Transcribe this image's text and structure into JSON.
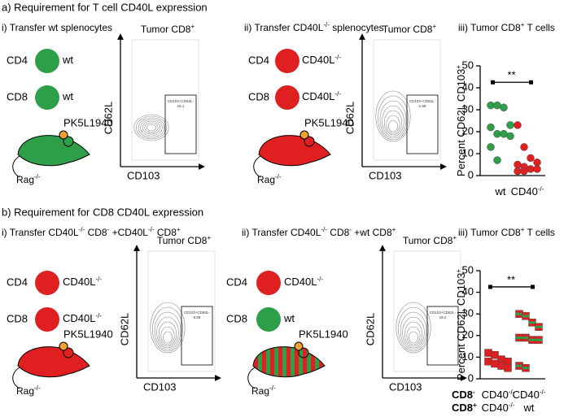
{
  "panel_a": {
    "heading": "a) Requirement for T cell CD40L expression",
    "i": {
      "title": [
        "i) Transfer wt splenocytes"
      ],
      "cd4": "CD4",
      "cd4_genotype": [
        "wt"
      ],
      "cd8": "CD8",
      "cd8_genotype": [
        "wt"
      ],
      "tumor": "PK5L1940",
      "host": [
        "Rag",
        {
          "sup": "-/-"
        }
      ],
      "plot_title": [
        "Tumor CD8",
        {
          "sup": "+"
        }
      ],
      "y_axis": "CD62L",
      "x_axis": "CD103",
      "gate_label": [
        "CD103+CD62L-"
      ],
      "gate_value": 15.1
    },
    "ii": {
      "title": [
        "ii) Transfer CD40L",
        {
          "sup": "-/-"
        },
        " splenocytes"
      ],
      "cd4": "CD4",
      "cd4_genotype": [
        "CD40L",
        {
          "sup": "-/-"
        }
      ],
      "cd8": "CD8",
      "cd8_genotype": [
        "CD40L",
        {
          "sup": "-/-"
        }
      ],
      "tumor": "PK5L1940",
      "host": [
        "Rag",
        {
          "sup": "-/-"
        }
      ],
      "plot_title": [
        "Tumor CD8",
        {
          "sup": "+"
        }
      ],
      "y_axis": "CD62L",
      "x_axis": "CD103",
      "gate_label": [
        "CD103+CD62L-"
      ],
      "gate_value": 1.89
    }
  },
  "panel_b": {
    "heading": "b) Requirement for CD8 CD40L expression",
    "i": {
      "title": [
        "i) Transfer CD40L",
        {
          "sup": "-/-"
        },
        " CD8",
        {
          "sup": "-"
        },
        " +CD40L",
        {
          "sup": "-/-"
        },
        " CD8",
        {
          "sup": "+"
        }
      ],
      "cd4": "CD4",
      "cd4_genotype": [
        "CD40L",
        {
          "sup": "-/-"
        }
      ],
      "cd8": "CD8",
      "cd8_genotype": [
        "CD40L",
        {
          "sup": "-/-"
        }
      ],
      "tumor": "PK5L1940",
      "host": [
        "Rag",
        {
          "sup": "-/-"
        }
      ],
      "plot_title": [
        "Tumor CD8",
        {
          "sup": "+"
        }
      ],
      "y_axis": "CD62L",
      "x_axis": "CD103",
      "gate_label": [
        "CD103+CD62L-"
      ],
      "gate_value": 9.08
    },
    "ii": {
      "title": [
        "ii) Transfer CD40L",
        {
          "sup": "-/-"
        },
        " CD8",
        {
          "sup": "-"
        },
        " +wt CD8",
        {
          "sup": "+"
        }
      ],
      "cd4": "CD4",
      "cd4_genotype": [
        "CD40L",
        {
          "sup": "-/-"
        }
      ],
      "cd8": "CD8",
      "cd8_genotype": [
        "wt"
      ],
      "tumor": "PK5L1940",
      "host": [
        "Rag",
        {
          "sup": "-/-"
        }
      ],
      "plot_title": [
        "Tumor CD8",
        {
          "sup": "+"
        }
      ],
      "y_axis": "CD62L",
      "x_axis": "CD103",
      "gate_label": [
        "CD103+CD62L-"
      ],
      "gate_value": 18.2
    }
  },
  "chart_data": [
    {
      "type": "strip",
      "marker": "circle",
      "title": [
        "iii) Tumor CD8",
        {
          "sup": "+"
        },
        " T cells"
      ],
      "ylabel": [
        "Percent CD62L CD103",
        {
          "sup": "+"
        }
      ],
      "categories": [
        [
          [
            "wt"
          ]
        ],
        [
          [
            "CD40",
            {
              "sup": "-/-"
            }
          ]
        ]
      ],
      "series": [
        {
          "color": "#2e9e48",
          "values": [
            32,
            32,
            31,
            23,
            22,
            19,
            19,
            18,
            13,
            7
          ]
        },
        {
          "color": "#e02020",
          "values": [
            23,
            13,
            8,
            6,
            5,
            4,
            3,
            3,
            2,
            2
          ]
        }
      ],
      "annotation": "**",
      "ylim": [
        0,
        50
      ],
      "yticks": [
        0,
        10,
        20,
        30,
        40,
        50
      ]
    },
    {
      "type": "strip",
      "marker": "square",
      "title": [
        "iii) Tumor CD8",
        {
          "sup": "+"
        },
        " T cells"
      ],
      "ylabel": [
        "Percent CD62L CD103",
        {
          "sup": "+"
        }
      ],
      "row_labels": [
        [
          "CD8",
          {
            "sup": "-"
          }
        ],
        [
          "CD8",
          {
            "sup": "+"
          }
        ]
      ],
      "categories": [
        [
          [
            "CD40",
            {
              "sup": "-/-"
            }
          ],
          [
            "CD40",
            {
              "sup": "-/-"
            }
          ]
        ],
        [
          [
            "CD40",
            {
              "sup": "-/-"
            }
          ],
          [
            "wt"
          ]
        ]
      ],
      "series": [
        {
          "color": "#e02020",
          "values": [
            12,
            11,
            9,
            8,
            8,
            7,
            6,
            5
          ]
        },
        {
          "color": "#e02020",
          "stripe": "#2e9e48",
          "values": [
            30,
            29,
            26,
            24,
            19,
            19,
            18,
            18,
            6,
            5
          ]
        }
      ],
      "annotation": "**",
      "ylim": [
        0,
        50
      ],
      "yticks": [
        0,
        10,
        20,
        30,
        40,
        50
      ]
    }
  ]
}
